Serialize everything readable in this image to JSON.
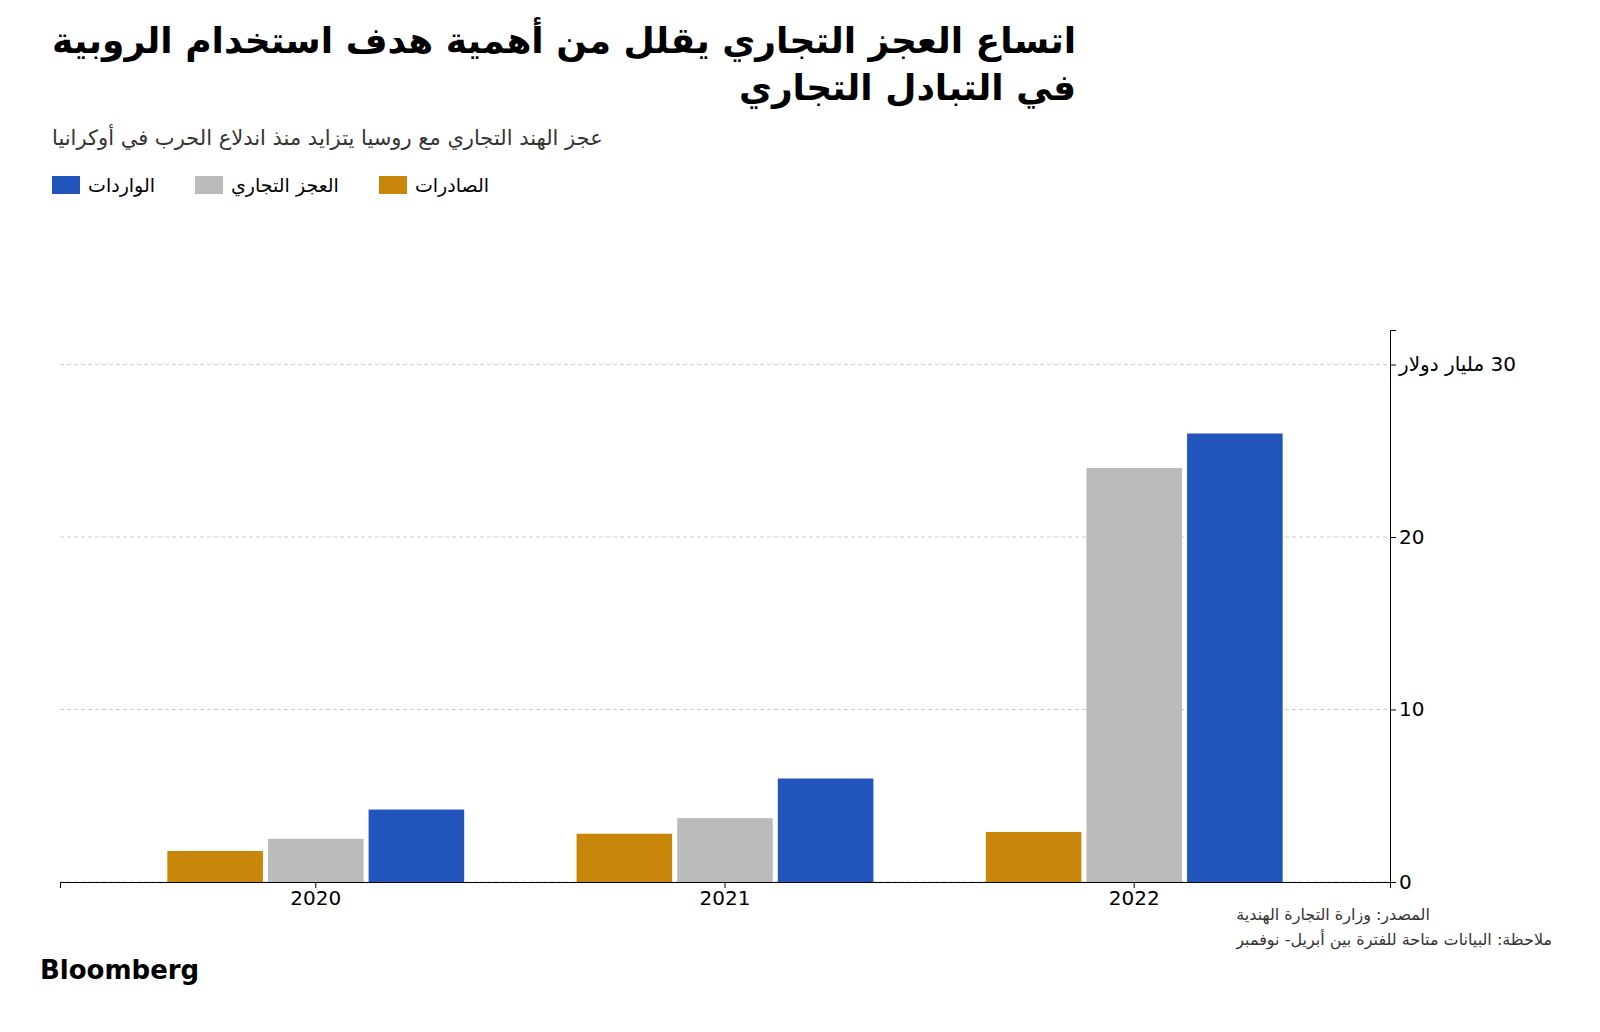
{
  "chart_data": {
    "type": "bar",
    "title": "اتساع العجز التجاري يقلل من أهمية هدف استخدام الروبية\nفي التبادل التجاري",
    "subtitle": "عجز الهند التجاري مع روسيا يتزايد منذ اندلاع الحرب في أوكرانيا",
    "categories": [
      "2020",
      "2021",
      "2022"
    ],
    "series": [
      {
        "name": "الصادرات",
        "color": "#C8860A",
        "values": [
          1.8,
          2.8,
          2.9
        ]
      },
      {
        "name": "العجز التجاري",
        "color": "#BBBBBB",
        "values": [
          2.5,
          3.7,
          24.0
        ]
      },
      {
        "name": "الواردات",
        "color": "#2255BB",
        "values": [
          4.2,
          6.0,
          26.0
        ]
      }
    ],
    "ylim": [
      0,
      32
    ],
    "yticks": [
      0,
      10,
      20,
      {
        "value": 30,
        "label": "30 مليار دولار"
      }
    ],
    "grid": true,
    "legend": "top-right",
    "annotations": [
      "المصدر: وزارة التجارة الهندية",
      "ملاحظة: البيانات متاحة للفترة بين أبريل- نوفمبر",
      "Bloomberg"
    ]
  }
}
